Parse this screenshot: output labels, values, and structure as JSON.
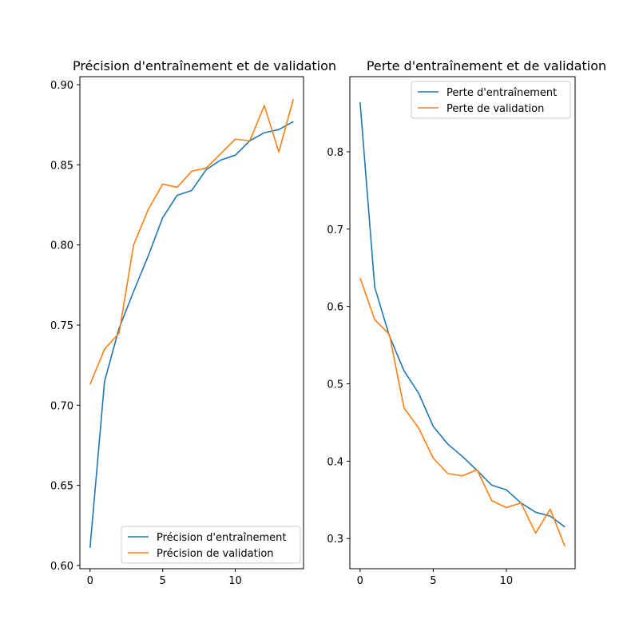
{
  "chart_data": [
    {
      "type": "line",
      "title": "Précision d'entraînement et de validation",
      "xlabel": "",
      "ylabel": "",
      "xlim": [
        -0.7,
        14.7
      ],
      "ylim": [
        0.598,
        0.905
      ],
      "xticks": [
        0,
        5,
        10
      ],
      "yticks": [
        0.6,
        0.65,
        0.7,
        0.75,
        0.8,
        0.85,
        0.9
      ],
      "ytick_labels": [
        "0.60",
        "0.65",
        "0.70",
        "0.75",
        "0.80",
        "0.85",
        "0.90"
      ],
      "legend_position": "lower-right",
      "x": [
        0,
        1,
        2,
        3,
        4,
        5,
        6,
        7,
        8,
        9,
        10,
        11,
        12,
        13,
        14
      ],
      "series": [
        {
          "name": "Précision d'entraînement",
          "color": "#1f77b4",
          "values": [
            0.611,
            0.715,
            0.748,
            0.771,
            0.793,
            0.817,
            0.831,
            0.834,
            0.847,
            0.853,
            0.856,
            0.865,
            0.87,
            0.872,
            0.877
          ]
        },
        {
          "name": "Précision de validation",
          "color": "#ff7f0e",
          "values": [
            0.713,
            0.735,
            0.745,
            0.8,
            0.822,
            0.838,
            0.836,
            0.846,
            0.848,
            0.857,
            0.866,
            0.865,
            0.887,
            0.858,
            0.891
          ]
        }
      ]
    },
    {
      "type": "line",
      "title": "Perte d'entraînement et de validation",
      "xlabel": "",
      "ylabel": "",
      "xlim": [
        -0.7,
        14.7
      ],
      "ylim": [
        0.261,
        0.897
      ],
      "xticks": [
        0,
        5,
        10
      ],
      "yticks": [
        0.3,
        0.4,
        0.5,
        0.6,
        0.7,
        0.8
      ],
      "ytick_labels": [
        "0.3",
        "0.4",
        "0.5",
        "0.6",
        "0.7",
        "0.8"
      ],
      "legend_position": "upper-right",
      "x": [
        0,
        1,
        2,
        3,
        4,
        5,
        6,
        7,
        8,
        9,
        10,
        11,
        12,
        13,
        14
      ],
      "series": [
        {
          "name": "Perte d'entraînement",
          "color": "#1f77b4",
          "values": [
            0.864,
            0.625,
            0.562,
            0.517,
            0.488,
            0.445,
            0.422,
            0.406,
            0.388,
            0.369,
            0.363,
            0.346,
            0.334,
            0.329,
            0.315
          ]
        },
        {
          "name": "Perte de validation",
          "color": "#ff7f0e",
          "values": [
            0.637,
            0.583,
            0.564,
            0.469,
            0.443,
            0.404,
            0.384,
            0.381,
            0.389,
            0.349,
            0.34,
            0.346,
            0.307,
            0.338,
            0.29
          ]
        }
      ]
    }
  ]
}
